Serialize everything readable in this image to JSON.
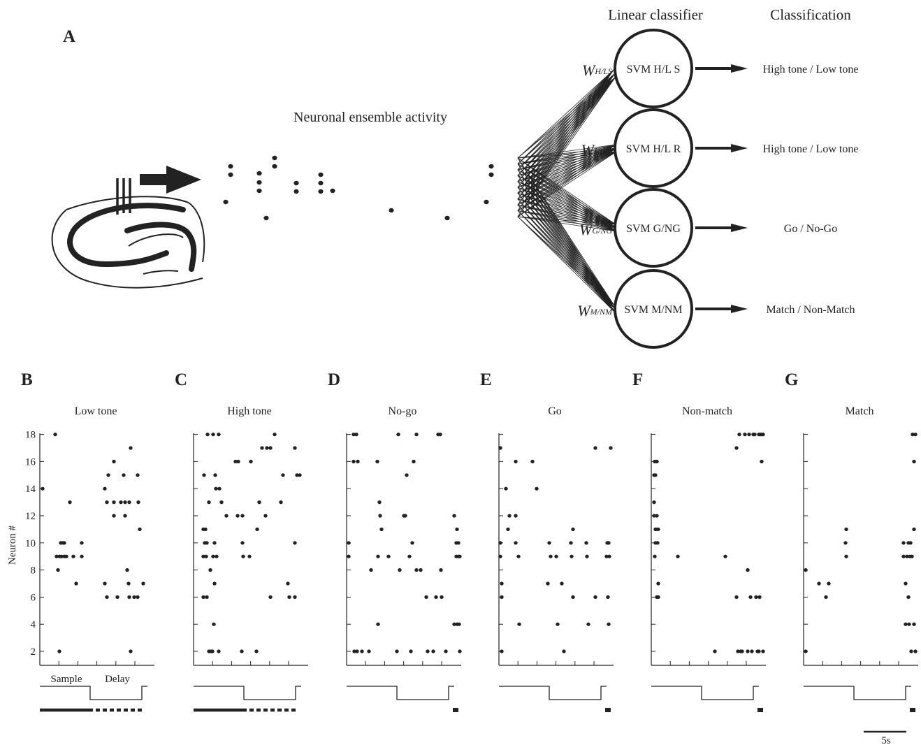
{
  "panel_a": {
    "label": "A",
    "ensemble_title": "Neuronal ensemble activity",
    "header_classifier": "Linear classifier",
    "header_classification": "Classification",
    "classifiers": [
      {
        "w_main": "W",
        "w_sub": "H/LS",
        "svm": "SVM H/L S",
        "output": "High tone /  Low tone"
      },
      {
        "w_main": "W",
        "w_sub": "H/LR",
        "svm": "SVM H/L R",
        "output": "High tone /  Low tone"
      },
      {
        "w_main": "W",
        "w_sub": "G/NG",
        "svm": "SVM G/NG",
        "output": "Go / No-Go"
      },
      {
        "w_main": "W",
        "w_sub": "M/NM",
        "svm": "SVM M/NM",
        "output": "Match / Non-Match"
      }
    ]
  },
  "raster": {
    "y_label": "Neuron #",
    "y_ticks": [
      "2",
      "4",
      "6",
      "8",
      "10",
      "12",
      "14",
      "16",
      "18"
    ],
    "epoch_labels": {
      "sample": "Sample",
      "delay": "Delay"
    },
    "scale_bar": "5s",
    "panels": [
      {
        "label": "B",
        "title": "Low tone"
      },
      {
        "label": "C",
        "title": "High tone"
      },
      {
        "label": "D",
        "title": "No-go"
      },
      {
        "label": "E",
        "title": "Go"
      },
      {
        "label": "F",
        "title": "Non-match"
      },
      {
        "label": "G",
        "title": "Match"
      }
    ]
  },
  "colors": {
    "ink": "#222222"
  }
}
